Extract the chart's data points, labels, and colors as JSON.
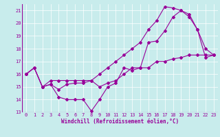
{
  "xlabel": "Windchill (Refroidissement éolien,°C)",
  "background_color": "#c8ecec",
  "line_color": "#990099",
  "grid_color": "#ffffff",
  "xlim": [
    -0.5,
    23.5
  ],
  "ylim": [
    13,
    21.5
  ],
  "yticks": [
    13,
    14,
    15,
    16,
    17,
    18,
    19,
    20,
    21
  ],
  "xticks": [
    0,
    1,
    2,
    3,
    4,
    5,
    6,
    7,
    8,
    9,
    10,
    11,
    12,
    13,
    14,
    15,
    16,
    17,
    18,
    19,
    20,
    21,
    22,
    23
  ],
  "line1_x": [
    0,
    1,
    2,
    3,
    4,
    5,
    6,
    7,
    8,
    9,
    10,
    11,
    12,
    13,
    14,
    15,
    16,
    17,
    18,
    19,
    20,
    21,
    22,
    23
  ],
  "line1_y": [
    16.0,
    16.5,
    15.0,
    15.2,
    14.2,
    14.0,
    14.0,
    14.0,
    13.1,
    14.0,
    15.0,
    15.3,
    16.5,
    16.3,
    16.5,
    18.5,
    18.6,
    19.4,
    20.5,
    21.0,
    20.7,
    19.5,
    18.0,
    17.5
  ],
  "line2_x": [
    0,
    1,
    2,
    3,
    4,
    5,
    6,
    7,
    8,
    9,
    10,
    11,
    12,
    13,
    14,
    15,
    16,
    17,
    18,
    19,
    20,
    21,
    22,
    23
  ],
  "line2_y": [
    16.0,
    16.5,
    15.0,
    15.2,
    14.8,
    15.2,
    15.3,
    15.3,
    15.5,
    15.0,
    15.3,
    15.5,
    16.0,
    16.5,
    16.5,
    16.5,
    17.0,
    17.0,
    17.2,
    17.3,
    17.5,
    17.5,
    17.5,
    17.5
  ],
  "line3_x": [
    0,
    1,
    2,
    3,
    4,
    5,
    6,
    7,
    8,
    9,
    10,
    11,
    12,
    13,
    14,
    15,
    16,
    17,
    18,
    19,
    20,
    21,
    22,
    23
  ],
  "line3_y": [
    16.0,
    16.5,
    15.0,
    15.5,
    15.5,
    15.5,
    15.5,
    15.5,
    15.5,
    16.0,
    16.5,
    17.0,
    17.5,
    18.0,
    18.5,
    19.5,
    20.2,
    21.3,
    21.2,
    21.0,
    20.5,
    19.5,
    17.3,
    17.5
  ],
  "tick_fontsize": 5.0,
  "xlabel_fontsize": 5.5,
  "linewidth": 0.8,
  "markersize": 2.0
}
